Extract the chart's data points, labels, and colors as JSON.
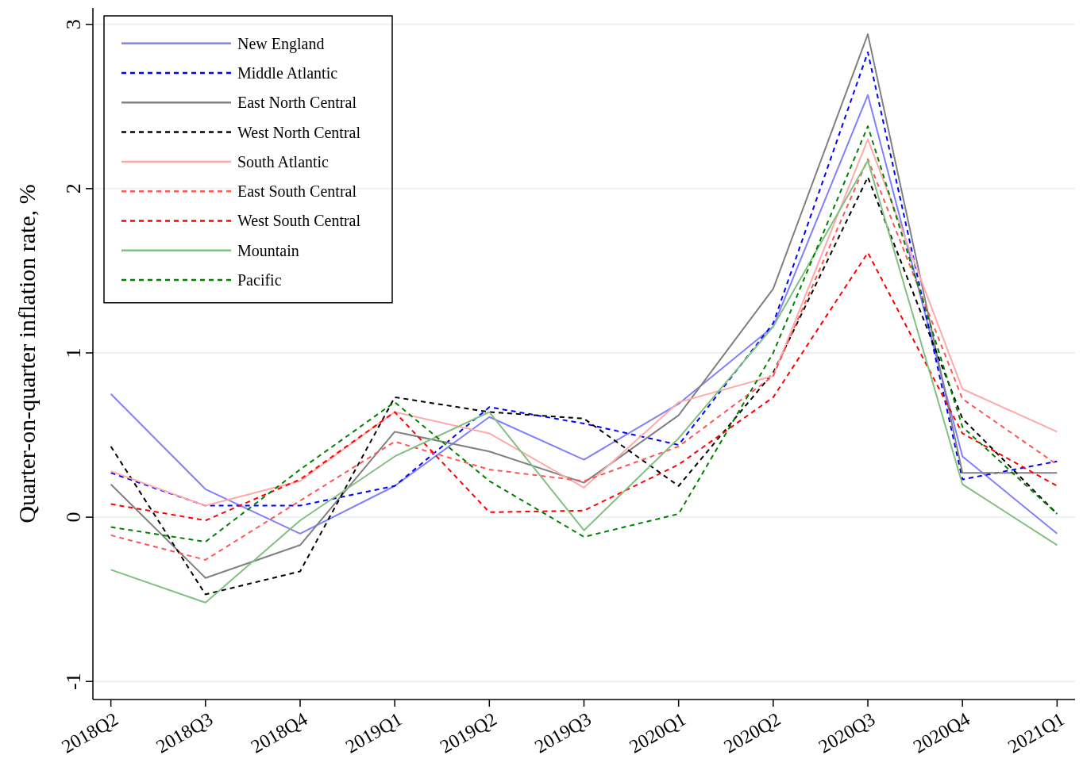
{
  "chart_data": {
    "type": "line",
    "ylabel": "Quarter-on-quarter inflation rate, %",
    "categories": [
      "2018Q2",
      "2018Q3",
      "2018Q4",
      "2019Q1",
      "2019Q2",
      "2019Q3",
      "2020Q1",
      "2020Q2",
      "2020Q3",
      "2020Q4",
      "2021Q1"
    ],
    "ylim": [
      -1.11,
      3.1
    ],
    "yticks": [
      -1,
      0,
      1,
      2,
      3
    ],
    "grid": "y",
    "legend": "top left",
    "marker": "none",
    "series": [
      {
        "name": "New England",
        "color": "#8080ff",
        "line_style": "solid",
        "values": [
          0.75,
          0.17,
          -0.1,
          0.19,
          0.61,
          0.35,
          0.69,
          1.16,
          2.57,
          0.37,
          -0.1
        ]
      },
      {
        "name": "Middle Atlantic",
        "color": "#0000ff",
        "line_style": "dashed",
        "values": [
          0.27,
          0.07,
          0.07,
          0.19,
          0.67,
          0.57,
          0.44,
          1.18,
          2.83,
          0.23,
          0.34
        ]
      },
      {
        "name": "East North Central",
        "color": "#808080",
        "line_style": "solid",
        "values": [
          0.2,
          -0.37,
          -0.17,
          0.52,
          0.4,
          0.21,
          0.62,
          1.39,
          2.94,
          0.27,
          0.27
        ]
      },
      {
        "name": "West North Central",
        "color": "#000000",
        "line_style": "dashed",
        "values": [
          0.43,
          -0.47,
          -0.33,
          0.73,
          0.64,
          0.6,
          0.19,
          0.88,
          2.07,
          0.6,
          0.02
        ]
      },
      {
        "name": "South Atlantic",
        "color": "#ffaaaa",
        "line_style": "solid",
        "values": [
          0.28,
          0.07,
          0.22,
          0.64,
          0.51,
          0.18,
          0.7,
          0.86,
          2.3,
          0.78,
          0.52
        ]
      },
      {
        "name": "East South Central",
        "color": "#ff5555",
        "line_style": "dashed",
        "values": [
          -0.11,
          -0.26,
          0.1,
          0.46,
          0.29,
          0.22,
          0.43,
          0.86,
          2.18,
          0.72,
          0.32
        ]
      },
      {
        "name": "West South Central",
        "color": "#ff0000",
        "line_style": "dashed",
        "values": [
          0.08,
          -0.02,
          0.23,
          0.64,
          0.03,
          0.04,
          0.32,
          0.73,
          1.61,
          0.51,
          0.19
        ]
      },
      {
        "name": "Mountain",
        "color": "#80c080",
        "line_style": "solid",
        "values": [
          -0.32,
          -0.52,
          -0.02,
          0.37,
          0.64,
          -0.08,
          0.48,
          1.16,
          2.17,
          0.2,
          -0.17
        ]
      },
      {
        "name": "Pacific",
        "color": "#008000",
        "line_style": "dashed",
        "values": [
          -0.06,
          -0.15,
          0.29,
          0.7,
          0.22,
          -0.12,
          0.02,
          1.0,
          2.38,
          0.55,
          0.02
        ]
      }
    ]
  }
}
